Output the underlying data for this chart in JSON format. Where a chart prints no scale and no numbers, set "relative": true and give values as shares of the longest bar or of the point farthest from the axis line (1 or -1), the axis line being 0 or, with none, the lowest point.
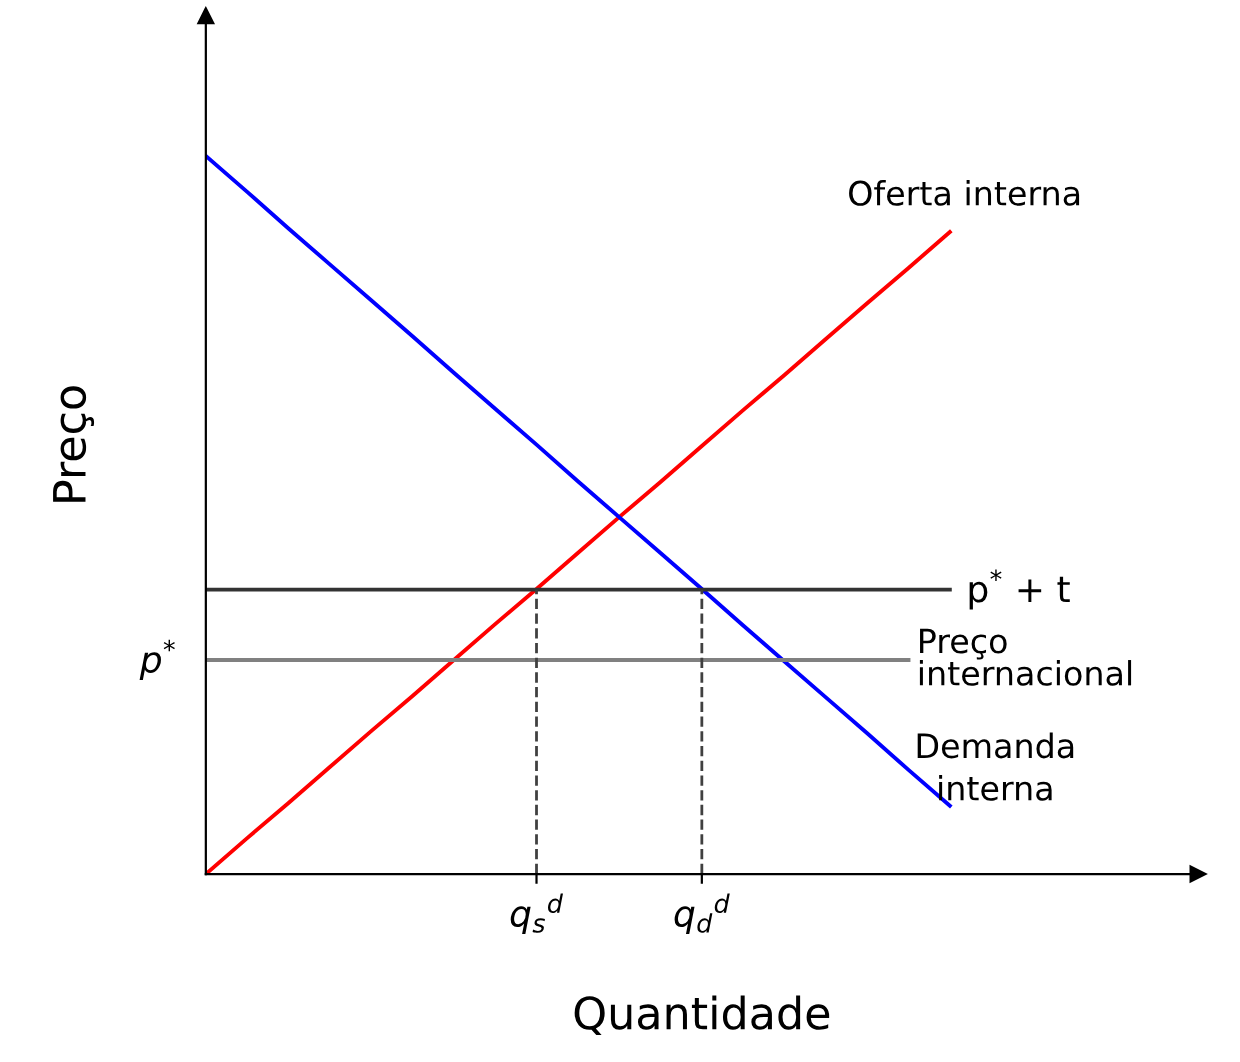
{
  "chart_data": {
    "type": "line",
    "relative": true,
    "xlabel": "Quantidade",
    "ylabel": "Preço",
    "categories": [
      null,
      null,
      null,
      null,
      null,
      null,
      null,
      null,
      "q$_{s}$$^{d}$",
      null,
      null,
      null,
      "q$_{d}$$^{d}$",
      null,
      null,
      null,
      null,
      null,
      null,
      null,
      null,
      null,
      null,
      null,
      null
    ],
    "annotations": [
      "p$^{*}$"
    ],
    "line_style": "solid",
    "marker": "none",
    "legend": false,
    "ref_lines": [
      {
        "axis": "x",
        "value": "q$_{s}$$^{d}$",
        "color": "#404040",
        "line_style": "dashed"
      },
      {
        "axis": "x",
        "value": "q$_{d}$$^{d}$",
        "color": "#404040",
        "line_style": "dashed"
      }
    ],
    "series": [
      {
        "name": "Oferta interna",
        "color": "#ff0000",
        "values": [
          0,
          0.05,
          0.099,
          0.149,
          0.199,
          0.248,
          0.298,
          0.348,
          0.397,
          0.447,
          0.497,
          0.546,
          0.596,
          0.646,
          0.695,
          0.745,
          0.795,
          0.844,
          0.894,
          null,
          null,
          null,
          null,
          null,
          null
        ]
      },
      {
        "name": "Demanda interna",
        "color": "#0000ff",
        "values": [
          1,
          0.95,
          0.899,
          0.849,
          0.799,
          0.749,
          0.698,
          0.648,
          0.598,
          0.547,
          0.497,
          0.447,
          0.397,
          0.346,
          0.296,
          0.246,
          0.196,
          0.145,
          0.095,
          null,
          null,
          null,
          null,
          null,
          null
        ]
      },
      {
        "name": "p$^{*}$ + t",
        "color": "#333333",
        "values": [
          0.396,
          0.396,
          0.396,
          0.396,
          0.396,
          0.396,
          0.396,
          0.396,
          0.396,
          0.396,
          0.396,
          0.396,
          0.396,
          0.396,
          0.396,
          0.396,
          0.396,
          0.396,
          0.396,
          null,
          null,
          null,
          null,
          null,
          null
        ]
      },
      {
        "name": "Preço internacional",
        "color": "#808080",
        "values": [
          0.298,
          0.298,
          0.298,
          0.298,
          0.298,
          0.298,
          0.298,
          0.298,
          0.298,
          0.298,
          0.298,
          0.298,
          0.298,
          0.298,
          0.298,
          0.298,
          0.298,
          0.298,
          null,
          null,
          null,
          null,
          null,
          null,
          null
        ]
      }
    ]
  }
}
